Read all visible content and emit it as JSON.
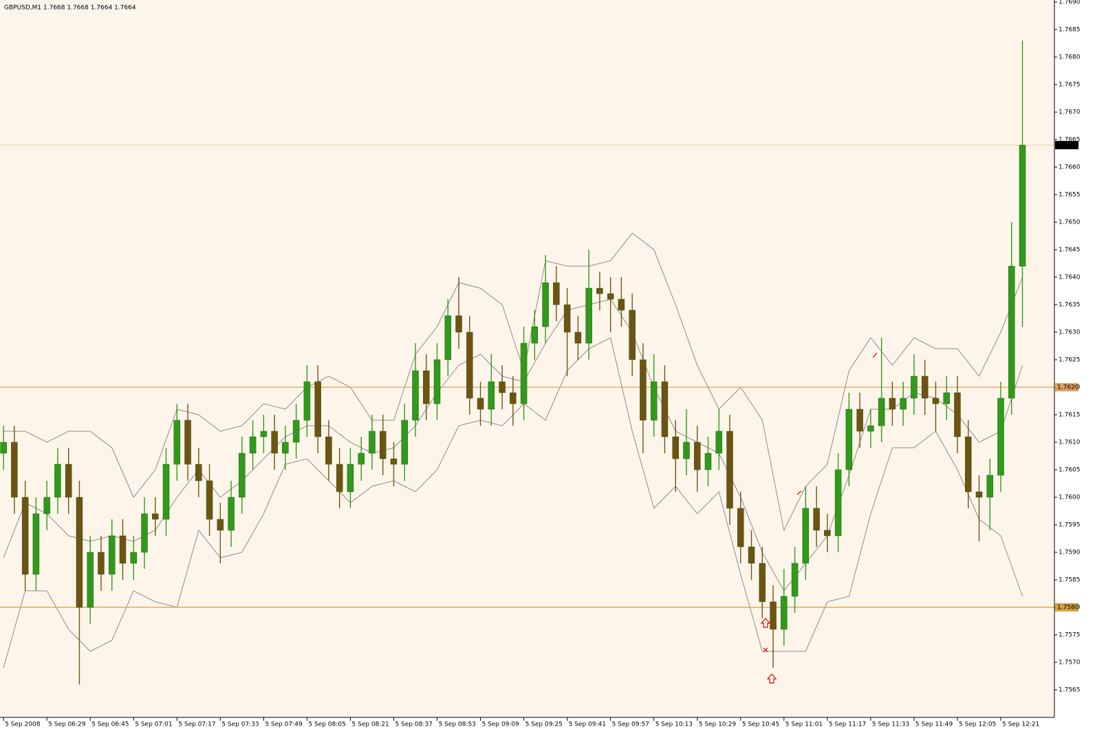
{
  "chart_data": {
    "type": "candlestick",
    "title": "GBPUSD,M1  1.7668 1.7668 1.7664 1.7664",
    "background": "#fdf5ea",
    "grid": true,
    "grid_color": "#f0d6b2",
    "xlim": [
      -1.3,
      387.8
    ],
    "ylim": [
      1.756,
      1.769
    ],
    "xticks": [
      {
        "value": 0,
        "label": "5 Sep 2008"
      },
      {
        "value": 16,
        "label": "5 Sep 06:29"
      },
      {
        "value": 32,
        "label": "5 Sep 06:45"
      },
      {
        "value": 48,
        "label": "5 Sep 07:01"
      },
      {
        "value": 64,
        "label": "5 Sep 07:17"
      },
      {
        "value": 80,
        "label": "5 Sep 07:33"
      },
      {
        "value": 96,
        "label": "5 Sep 07:49"
      },
      {
        "value": 112,
        "label": "5 Sep 08:05"
      },
      {
        "value": 128,
        "label": "5 Sep 08:21"
      },
      {
        "value": 144,
        "label": "5 Sep 08:37"
      },
      {
        "value": 160,
        "label": "5 Sep 08:53"
      },
      {
        "value": 176,
        "label": "5 Sep 09:09"
      },
      {
        "value": 192,
        "label": "5 Sep 09:25"
      },
      {
        "value": 208,
        "label": "5 Sep 09:41"
      },
      {
        "value": 224,
        "label": "5 Sep 09:57"
      },
      {
        "value": 240,
        "label": "5 Sep 10:13"
      },
      {
        "value": 256,
        "label": "5 Sep 10:29"
      },
      {
        "value": 272,
        "label": "5 Sep 10:45"
      },
      {
        "value": 288,
        "label": "5 Sep 11:01"
      },
      {
        "value": 304,
        "label": "5 Sep 11:17"
      },
      {
        "value": 320,
        "label": "5 Sep 11:33"
      },
      {
        "value": 336,
        "label": "5 Sep 11:49"
      },
      {
        "value": 352,
        "label": "5 Sep 12:05"
      },
      {
        "value": 368,
        "label": "5 Sep 12:21"
      }
    ],
    "yticks": [
      1.7565,
      {
        "value": 1.757,
        "label": "1.7570"
      },
      1.7575,
      {
        "value": 1.758,
        "label": "1.7580"
      },
      1.7585,
      {
        "value": 1.759,
        "label": "1.7590"
      },
      1.7595,
      {
        "value": 1.76,
        "label": "1.7600"
      },
      1.7605,
      {
        "value": 1.761,
        "label": "1.7610"
      },
      1.7615,
      {
        "value": 1.762,
        "label": "1.7620"
      },
      1.7625,
      {
        "value": 1.763,
        "label": "1.7630"
      },
      1.7635,
      {
        "value": 1.764,
        "label": "1.7640"
      },
      1.7645,
      {
        "value": 1.765,
        "label": "1.7650"
      },
      1.7655,
      {
        "value": 1.766,
        "label": "1.7660"
      },
      1.7665,
      {
        "value": 1.767,
        "label": "1.7670"
      },
      1.7675,
      {
        "value": 1.768,
        "label": "1.7680"
      },
      1.7685,
      {
        "value": 1.769,
        "label": "1.7690"
      }
    ],
    "levels": [
      {
        "value": 1.762,
        "label": "1.7620",
        "color": "#e0a060"
      },
      {
        "value": 1.758,
        "label": "1.7580",
        "color": "#d4a040"
      }
    ],
    "last_price": {
      "value": 1.7664,
      "label": "1.7664",
      "color": "#000000"
    },
    "candles": {
      "color_up": "#2f9a1b",
      "color_down": "#6e5312",
      "wick_color": "#2a5a10",
      "x": [
        0,
        4,
        8,
        12,
        16,
        20,
        24,
        28,
        32,
        36,
        40,
        44,
        48,
        52,
        56,
        60,
        64,
        68,
        72,
        76,
        80,
        84,
        88,
        92,
        96,
        100,
        104,
        108,
        112,
        116,
        120,
        124,
        128,
        132,
        136,
        140,
        144,
        148,
        152,
        156,
        160,
        164,
        168,
        172,
        176,
        180,
        184,
        188,
        192,
        196,
        200,
        204,
        208,
        212,
        216,
        220,
        224,
        228,
        232,
        236,
        240,
        244,
        248,
        252,
        256,
        260,
        264,
        268,
        272,
        276,
        280,
        284,
        288,
        292,
        296,
        300,
        304,
        308,
        312,
        316,
        320,
        324,
        328,
        332,
        336,
        340,
        344,
        348,
        352,
        356,
        360,
        364,
        368,
        372,
        376
      ],
      "open": [
        1.7608,
        1.761,
        1.76,
        1.7586,
        1.7597,
        1.76,
        1.7606,
        1.76,
        1.758,
        1.759,
        1.7586,
        1.7593,
        1.7588,
        1.759,
        1.7597,
        1.7596,
        1.7606,
        1.7614,
        1.7606,
        1.7603,
        1.7596,
        1.7594,
        1.76,
        1.7608,
        1.7611,
        1.7612,
        1.7608,
        1.761,
        1.7614,
        1.7621,
        1.7611,
        1.7606,
        1.7601,
        1.7606,
        1.7608,
        1.7612,
        1.7607,
        1.7606,
        1.7614,
        1.7623,
        1.7617,
        1.7625,
        1.7633,
        1.763,
        1.7618,
        1.7616,
        1.7621,
        1.7619,
        1.7617,
        1.7628,
        1.7631,
        1.7639,
        1.7635,
        1.763,
        1.7628,
        1.7638,
        1.7637,
        1.7636,
        1.7634,
        1.7625,
        1.7614,
        1.7621,
        1.7611,
        1.7607,
        1.761,
        1.7605,
        1.7608,
        1.7612,
        1.7598,
        1.7591,
        1.7588,
        1.7581,
        1.7576,
        1.7582,
        1.7588,
        1.7598,
        1.7594,
        1.7593,
        1.7605,
        1.7616,
        1.7612,
        1.7613,
        1.7618,
        1.7616,
        1.7618,
        1.7622,
        1.7618,
        1.7617,
        1.7619,
        1.7611,
        1.7601,
        1.76,
        1.7604,
        1.7618,
        1.7642
      ],
      "high": [
        1.7613,
        1.7613,
        1.7603,
        1.76,
        1.7603,
        1.7609,
        1.7609,
        1.7603,
        1.7593,
        1.7593,
        1.7596,
        1.7596,
        1.7593,
        1.76,
        1.76,
        1.7609,
        1.7617,
        1.7617,
        1.7609,
        1.7606,
        1.7599,
        1.7603,
        1.7611,
        1.7614,
        1.7615,
        1.7615,
        1.7613,
        1.7617,
        1.7624,
        1.7624,
        1.7614,
        1.7609,
        1.7609,
        1.7611,
        1.7615,
        1.7615,
        1.761,
        1.7617,
        1.7628,
        1.7626,
        1.7628,
        1.7636,
        1.764,
        1.7633,
        1.7621,
        1.7626,
        1.7624,
        1.7622,
        1.7631,
        1.7634,
        1.7644,
        1.7642,
        1.7638,
        1.7633,
        1.7645,
        1.7641,
        1.764,
        1.764,
        1.7637,
        1.7628,
        1.7626,
        1.7624,
        1.7614,
        1.7616,
        1.7613,
        1.7611,
        1.7616,
        1.7615,
        1.7601,
        1.7594,
        1.7591,
        1.7584,
        1.7587,
        1.7591,
        1.7602,
        1.7602,
        1.7597,
        1.7608,
        1.7619,
        1.7619,
        1.7616,
        1.7629,
        1.7621,
        1.7621,
        1.7626,
        1.7625,
        1.7621,
        1.7622,
        1.7622,
        1.7614,
        1.7604,
        1.7607,
        1.7621,
        1.765,
        1.7683
      ],
      "low": [
        1.7605,
        1.7597,
        1.7583,
        1.7583,
        1.7594,
        1.7597,
        1.7597,
        1.7566,
        1.7577,
        1.7583,
        1.7583,
        1.7585,
        1.7585,
        1.7587,
        1.7593,
        1.7593,
        1.7603,
        1.7603,
        1.76,
        1.7593,
        1.7588,
        1.7591,
        1.7597,
        1.7605,
        1.7608,
        1.7605,
        1.7605,
        1.7607,
        1.7611,
        1.7608,
        1.7603,
        1.7598,
        1.7598,
        1.7603,
        1.7605,
        1.7604,
        1.7602,
        1.7603,
        1.7611,
        1.7614,
        1.7614,
        1.7622,
        1.7627,
        1.7615,
        1.7613,
        1.7613,
        1.7616,
        1.7613,
        1.7614,
        1.7625,
        1.7628,
        1.7632,
        1.7622,
        1.7625,
        1.7625,
        1.7634,
        1.763,
        1.7631,
        1.7622,
        1.7608,
        1.7611,
        1.7608,
        1.7601,
        1.7604,
        1.7601,
        1.7602,
        1.7605,
        1.7595,
        1.7588,
        1.7585,
        1.7578,
        1.7569,
        1.7573,
        1.7579,
        1.7585,
        1.7591,
        1.759,
        1.759,
        1.7602,
        1.7609,
        1.7609,
        1.761,
        1.7613,
        1.7613,
        1.7615,
        1.7615,
        1.7612,
        1.7614,
        1.7608,
        1.7598,
        1.7592,
        1.7594,
        1.7601,
        1.7615,
        1.7631
      ],
      "close": [
        1.761,
        1.76,
        1.7586,
        1.7597,
        1.76,
        1.7606,
        1.76,
        1.758,
        1.759,
        1.7586,
        1.7593,
        1.7588,
        1.759,
        1.7597,
        1.7596,
        1.7606,
        1.7614,
        1.7606,
        1.7603,
        1.7596,
        1.7594,
        1.76,
        1.7608,
        1.7611,
        1.7612,
        1.7608,
        1.761,
        1.7614,
        1.7621,
        1.7611,
        1.7606,
        1.7601,
        1.7606,
        1.7608,
        1.7612,
        1.7607,
        1.7606,
        1.7614,
        1.7623,
        1.7617,
        1.7625,
        1.7633,
        1.763,
        1.7618,
        1.7616,
        1.7621,
        1.7619,
        1.7617,
        1.7628,
        1.7631,
        1.7639,
        1.7635,
        1.763,
        1.7628,
        1.7638,
        1.7637,
        1.7636,
        1.7634,
        1.7625,
        1.7614,
        1.7621,
        1.7611,
        1.7607,
        1.761,
        1.7605,
        1.7608,
        1.7612,
        1.7598,
        1.7591,
        1.7588,
        1.7581,
        1.7576,
        1.7582,
        1.7588,
        1.7598,
        1.7594,
        1.7593,
        1.7605,
        1.7616,
        1.7612,
        1.7613,
        1.7618,
        1.7616,
        1.7618,
        1.7622,
        1.7618,
        1.7617,
        1.7619,
        1.7611,
        1.7601,
        1.76,
        1.7604,
        1.7618,
        1.7642,
        1.7664
      ]
    },
    "bands": {
      "color": "#8a8a8a",
      "x": [
        0,
        8,
        16,
        24,
        32,
        40,
        48,
        56,
        64,
        72,
        80,
        88,
        96,
        104,
        112,
        120,
        128,
        136,
        144,
        152,
        160,
        168,
        176,
        184,
        192,
        200,
        208,
        216,
        224,
        232,
        240,
        248,
        256,
        264,
        272,
        280,
        288,
        296,
        304,
        312,
        320,
        328,
        336,
        344,
        352,
        360,
        368,
        376
      ],
      "upper": [
        1.7612,
        1.7612,
        1.761,
        1.7612,
        1.7612,
        1.7609,
        1.76,
        1.7605,
        1.7616,
        1.7615,
        1.7612,
        1.7613,
        1.7617,
        1.7616,
        1.762,
        1.7622,
        1.762,
        1.7614,
        1.7614,
        1.7626,
        1.7631,
        1.7639,
        1.7638,
        1.7635,
        1.7623,
        1.7643,
        1.7642,
        1.7642,
        1.7643,
        1.7648,
        1.7645,
        1.7635,
        1.7624,
        1.7616,
        1.762,
        1.7614,
        1.7594,
        1.7602,
        1.7606,
        1.7623,
        1.7629,
        1.7624,
        1.7629,
        1.7627,
        1.7627,
        1.7622,
        1.763,
        1.764
      ],
      "middle": [
        1.7589,
        1.7599,
        1.7597,
        1.7593,
        1.7592,
        1.7593,
        1.7592,
        1.7594,
        1.76,
        1.7605,
        1.76,
        1.7603,
        1.7607,
        1.7611,
        1.7613,
        1.7613,
        1.761,
        1.7608,
        1.7609,
        1.7613,
        1.7619,
        1.7624,
        1.7626,
        1.7622,
        1.7621,
        1.7628,
        1.7634,
        1.7635,
        1.7636,
        1.763,
        1.762,
        1.7612,
        1.761,
        1.7608,
        1.76,
        1.759,
        1.7583,
        1.7588,
        1.7593,
        1.7604,
        1.7616,
        1.7616,
        1.7619,
        1.7618,
        1.7615,
        1.761,
        1.7612,
        1.7624
      ],
      "lower": [
        1.7569,
        1.7583,
        1.7583,
        1.7576,
        1.7572,
        1.7574,
        1.7583,
        1.7581,
        1.758,
        1.7594,
        1.7589,
        1.759,
        1.7597,
        1.7606,
        1.7607,
        1.7603,
        1.7599,
        1.7602,
        1.7603,
        1.7601,
        1.7605,
        1.7613,
        1.7614,
        1.7613,
        1.7617,
        1.7614,
        1.7623,
        1.7627,
        1.7629,
        1.7612,
        1.7598,
        1.7602,
        1.7597,
        1.7601,
        1.7586,
        1.7572,
        1.7572,
        1.7572,
        1.7581,
        1.7582,
        1.7597,
        1.7609,
        1.7609,
        1.7612,
        1.7605,
        1.7596,
        1.7593,
        1.7582
      ]
    }
  }
}
